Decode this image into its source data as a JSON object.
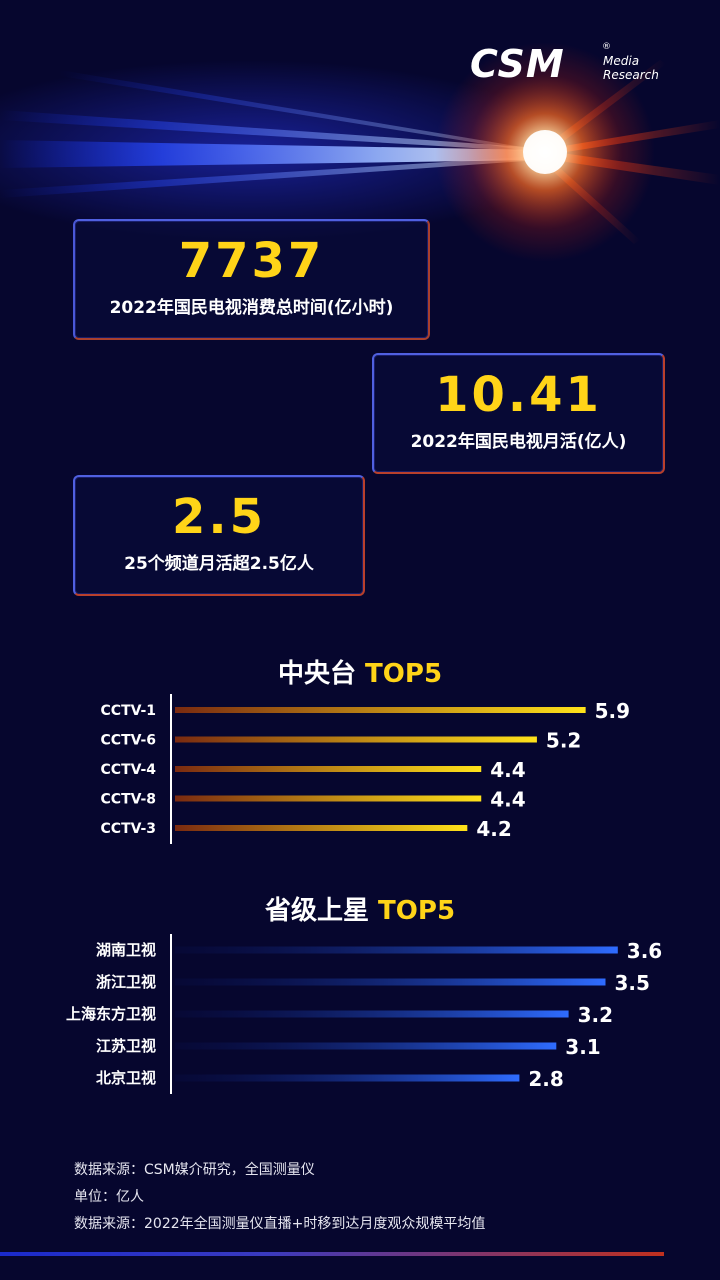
{
  "brand": {
    "logo_main": "CSM",
    "logo_sub1": "Media",
    "logo_sub2": "Research",
    "logo_reg": "®"
  },
  "cards": [
    {
      "value": "7737",
      "caption": "2022年国民电视消费总时间(亿小时)"
    },
    {
      "value": "10.41",
      "caption": "2022年国民电视月活(亿人)"
    },
    {
      "value": "2.5",
      "caption": "25个频道月活超2.5亿人"
    }
  ],
  "chart_data": [
    {
      "type": "bar",
      "title": "中央台",
      "title_highlight": "TOP5",
      "categories": [
        "CCTV-1",
        "CCTV-6",
        "CCTV-4",
        "CCTV-8",
        "CCTV-3"
      ],
      "values": [
        5.9,
        5.2,
        4.4,
        4.4,
        4.2
      ],
      "value_labels": [
        "5.9",
        "5.2",
        "4.4",
        "4.4",
        "4.2"
      ],
      "orientation": "horizontal",
      "bar_color_start": "#7a2a10",
      "bar_color_end": "#ffe21a"
    },
    {
      "type": "bar",
      "title": "省级上星",
      "title_highlight": "TOP5",
      "categories": [
        "湖南卫视",
        "浙江卫视",
        "上海东方卫视",
        "江苏卫视",
        "北京卫视"
      ],
      "values": [
        3.6,
        3.5,
        3.2,
        3.1,
        2.8
      ],
      "value_labels": [
        "3.6",
        "3.5",
        "3.2",
        "3.1",
        "2.8"
      ],
      "orientation": "horizontal",
      "bar_color_start": "#0a1660",
      "bar_color_end": "#2f6cff"
    }
  ],
  "footer": {
    "line1": "数据来源：CSM媒介研究，全国测量仪",
    "line2": "单位：亿人",
    "line3": "数据来源：2022年全国测量仪直播+时移到达月度观众规模平均值"
  },
  "colors": {
    "background": "#06062e",
    "accent_yellow": "#ffd418",
    "card_border": "#b83c2a"
  }
}
